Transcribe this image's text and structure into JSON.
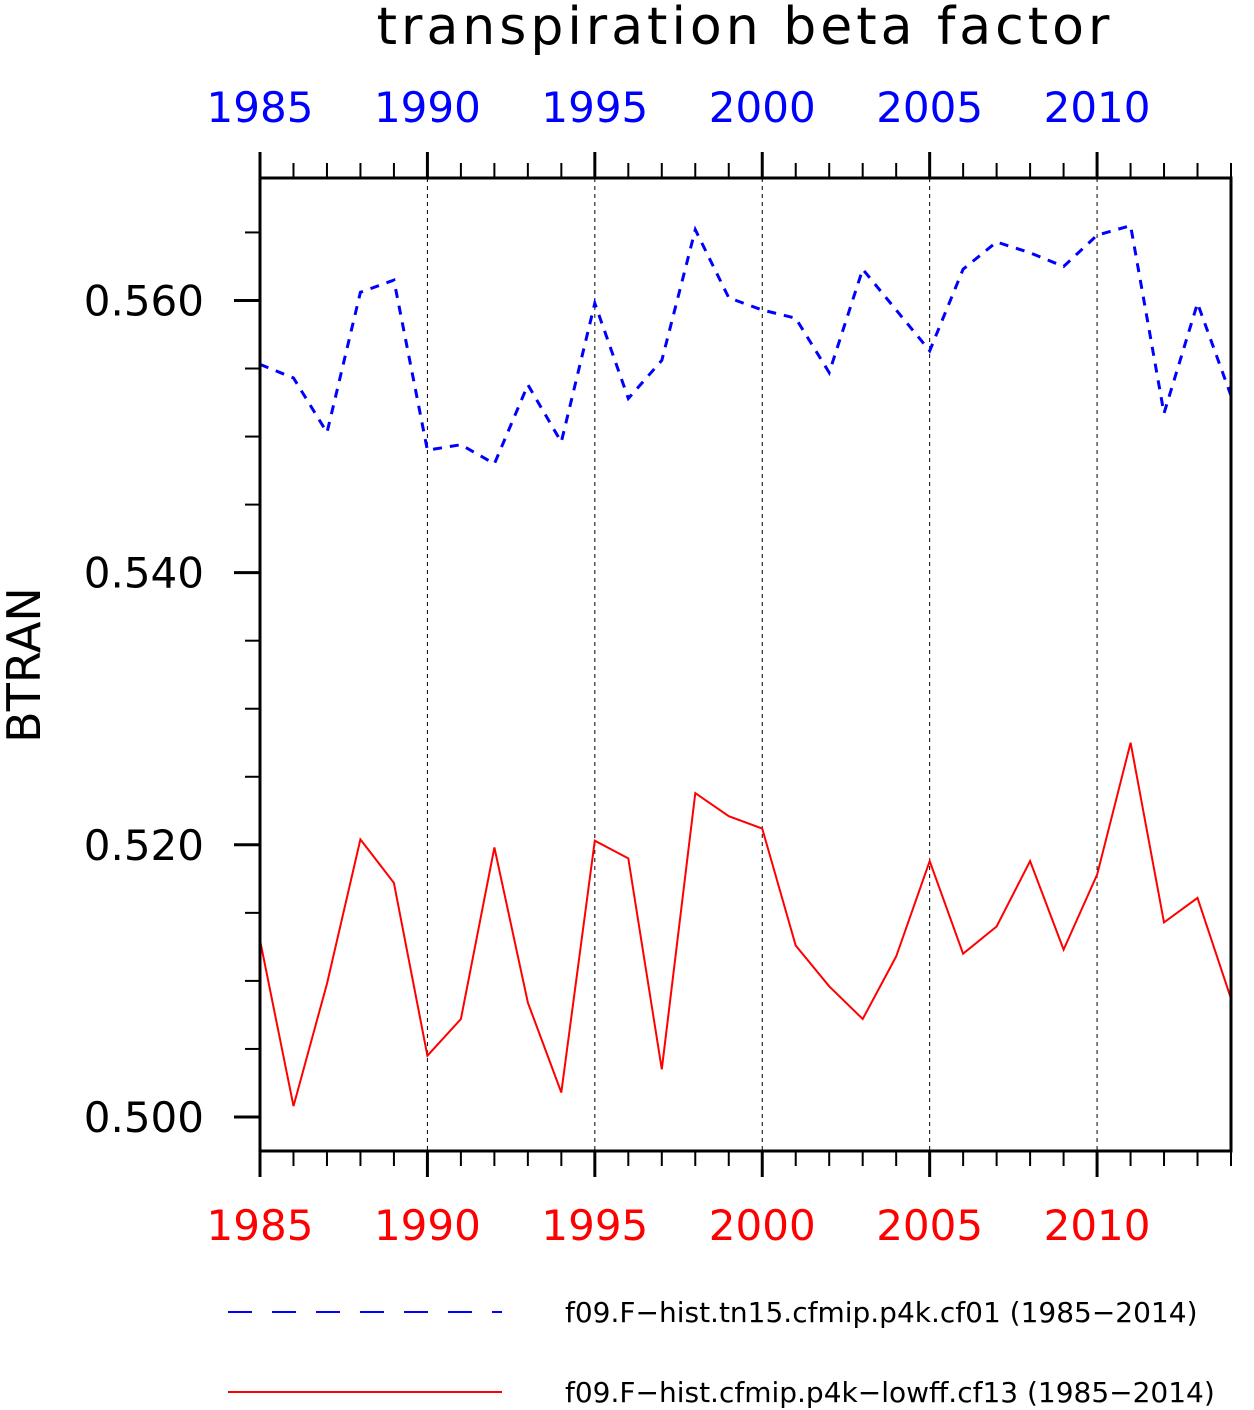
{
  "chart_data": {
    "type": "line",
    "title": "transpiration beta factor",
    "ylabel": "BTRAN",
    "xlabel": "",
    "xlim": [
      1985,
      2014
    ],
    "ylim": [
      0.4975,
      0.569
    ],
    "y_ticks": [
      0.5,
      0.52,
      0.54,
      0.56
    ],
    "y_tick_labels": [
      "0.500",
      "0.520",
      "0.540",
      "0.560"
    ],
    "x_ticks": [
      1985,
      1990,
      1995,
      2000,
      2005,
      2010
    ],
    "x_tick_labels": [
      "1985",
      "1990",
      "1995",
      "2000",
      "2005",
      "2010"
    ],
    "top_axis_color": "#0000ff",
    "bottom_axis_color": "#ff0000",
    "grid": "vertical dashed at major x ticks",
    "legend_position": "bottom",
    "x": [
      1985,
      1986,
      1987,
      1988,
      1989,
      1990,
      1991,
      1992,
      1993,
      1994,
      1995,
      1996,
      1997,
      1998,
      1999,
      2000,
      2001,
      2002,
      2003,
      2004,
      2005,
      2006,
      2007,
      2008,
      2009,
      2010,
      2011,
      2012,
      2013,
      2014
    ],
    "series": [
      {
        "name": "f09.F−hist.tn15.cfmip.p4k.cf01 (1985−2014)",
        "color": "#0000ff",
        "style": "dashed",
        "values": [
          0.5553,
          0.5543,
          0.5503,
          0.5606,
          0.5615,
          0.549,
          0.5494,
          0.548,
          0.5538,
          0.5496,
          0.5598,
          0.5528,
          0.5556,
          0.5652,
          0.5602,
          0.5593,
          0.5587,
          0.5547,
          0.5623,
          0.5593,
          0.5563,
          0.5623,
          0.5643,
          0.5635,
          0.5625,
          0.5648,
          0.5655,
          0.5517,
          0.5598,
          0.553
        ]
      },
      {
        "name": "f09.F−hist.cfmip.p4k−lowff.cf13 (1985−2014)",
        "color": "#ff0000",
        "style": "solid",
        "values": [
          0.513,
          0.5008,
          0.5098,
          0.5204,
          0.5172,
          0.5045,
          0.5072,
          0.5198,
          0.5084,
          0.5018,
          0.5203,
          0.519,
          0.5035,
          0.5238,
          0.5221,
          0.5212,
          0.5126,
          0.5096,
          0.5072,
          0.5118,
          0.5188,
          0.512,
          0.514,
          0.5188,
          0.5123,
          0.5178,
          0.5275,
          0.5143,
          0.5161,
          0.5087
        ]
      }
    ]
  }
}
